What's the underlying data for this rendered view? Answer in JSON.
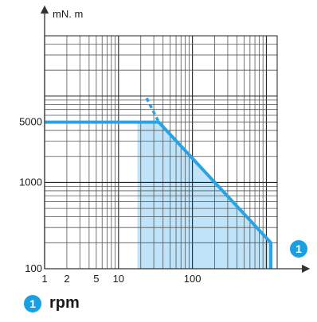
{
  "chart_data": {
    "type": "area",
    "y_unit": "mN. m",
    "x_axis_badge": "1",
    "x_scale": "log",
    "y_scale": "log",
    "x_ticks": [
      {
        "value": 1,
        "label": "1"
      },
      {
        "value": 2,
        "label": "2"
      },
      {
        "value": 5,
        "label": "5"
      },
      {
        "value": 10,
        "label": "10"
      },
      {
        "value": 100,
        "label": "100"
      }
    ],
    "y_ticks": [
      {
        "value": 100,
        "label": "100"
      },
      {
        "value": 1000,
        "label": "1000"
      },
      {
        "value": 5000,
        "label": "5000"
      }
    ],
    "xlim": [
      1,
      1400
    ],
    "ylim": [
      100,
      50000
    ],
    "series": [
      {
        "x": [
          1,
          35,
          1150,
          1150
        ],
        "y": [
          5000,
          5000,
          200,
          100
        ],
        "color": "#2aa3e6"
      }
    ],
    "dashed_extension": {
      "x": [
        24,
        35
      ],
      "y": [
        9500,
        5000
      ],
      "color": "#2aa3e6"
    },
    "shaded_region": {
      "x": [
        18,
        35,
        1150,
        1150,
        18
      ],
      "y": [
        5000,
        5000,
        200,
        100,
        100
      ],
      "color": "#bfe3f8"
    },
    "grid": true
  },
  "legend": {
    "badge": "1",
    "label": "rpm"
  }
}
